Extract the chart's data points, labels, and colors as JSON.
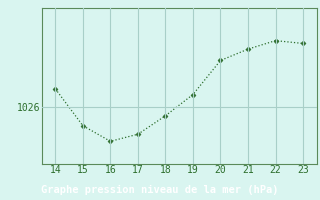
{
  "x": [
    14,
    15,
    16,
    17,
    18,
    19,
    20,
    21,
    22,
    23
  ],
  "y": [
    1027.3,
    1024.7,
    1023.6,
    1024.1,
    1025.4,
    1026.9,
    1029.3,
    1030.1,
    1030.7,
    1030.5
  ],
  "line_color": "#2d6e2d",
  "marker": "D",
  "marker_size": 2.5,
  "background_color": "#d9f5f0",
  "grid_color": "#a8cfc8",
  "xlabel": "Graphe pression niveau de la mer (hPa)",
  "xlabel_color": "#2d6e2d",
  "ylabel_label": "1026",
  "xlim": [
    13.5,
    23.5
  ],
  "ylim": [
    1022.0,
    1033.0
  ],
  "xticks": [
    14,
    15,
    16,
    17,
    18,
    19,
    20,
    21,
    22,
    23
  ],
  "yticks": [
    1026
  ],
  "tick_fontsize": 7,
  "xlabel_fontsize": 7.5,
  "spine_color": "#5a8a5a",
  "bottom_bar_color": "#2d6e2d",
  "bottom_bar_height": 0.1
}
